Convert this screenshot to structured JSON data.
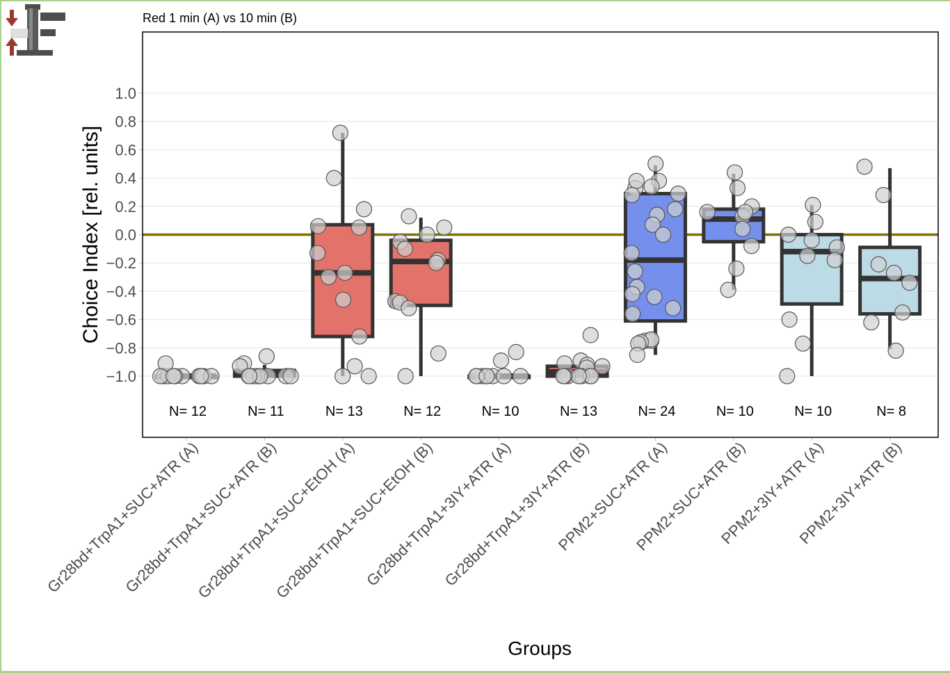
{
  "window": {
    "logo_icon": "clamp-press-icon"
  },
  "chart_data": {
    "type": "box",
    "title": "Red 1 min (A) vs 10 min (B)",
    "xlabel": "Groups",
    "ylabel": "Choice Index [rel. units]",
    "ylim": [
      -1.0,
      1.0
    ],
    "yticks": [
      1.0,
      0.8,
      0.6,
      0.4,
      0.2,
      0.0,
      -0.2,
      -0.4,
      -0.6,
      -0.8,
      -1.0
    ],
    "ytick_labels": [
      "1.0",
      "0.8",
      "0.6",
      "0.4",
      "0.2",
      "0.0",
      "−0.2",
      "−0.4",
      "−0.6",
      "−0.8",
      "−1.0"
    ],
    "reference_line": {
      "y": 0.0,
      "color": "#7f6f00"
    },
    "grid": true,
    "colors": {
      "red": "#e3736a",
      "blue": "#7490ec",
      "lightblue": "#bddbe6",
      "box_edge": "#333333",
      "point_fill": "#d0d0d0",
      "point_edge": "#555555"
    },
    "groups": [
      {
        "label": "Gr28bd+TrpA1+SUC+ATR (A)",
        "n_label": "N= 12",
        "color": "red",
        "q1": -1.0,
        "median": -1.0,
        "q3": -1.0,
        "whisker_low": -1.0,
        "whisker_high": -1.0,
        "points": [
          -1.0,
          -1.0,
          -1.0,
          -1.0,
          -1.0,
          -1.0,
          -0.91,
          -1.0,
          -1.0,
          -1.0,
          -1.0,
          -1.0
        ]
      },
      {
        "label": "Gr28bd+TrpA1+SUC+ATR (B)",
        "n_label": "N= 11",
        "color": "red",
        "q1": -1.0,
        "median": -0.98,
        "q3": -0.96,
        "whisker_low": -1.0,
        "whisker_high": -0.92,
        "points": [
          -1.0,
          -1.0,
          -1.0,
          -0.86,
          -0.91,
          -0.93,
          -1.0,
          -1.0,
          -1.0,
          -1.0,
          -1.0
        ]
      },
      {
        "label": "Gr28bd+TrpA1+SUC+EtOH (A)",
        "n_label": "N= 13",
        "color": "red",
        "q1": -0.72,
        "median": -0.27,
        "q3": 0.07,
        "whisker_low": -1.0,
        "whisker_high": 0.72,
        "points": [
          0.72,
          0.4,
          0.18,
          0.06,
          0.05,
          -0.13,
          -0.27,
          -0.3,
          -0.46,
          -0.72,
          -0.93,
          -1.0,
          -1.0
        ]
      },
      {
        "label": "Gr28bd+TrpA1+SUC+EtOH (B)",
        "n_label": "N= 12",
        "color": "red",
        "q1": -0.5,
        "median": -0.19,
        "q3": -0.04,
        "whisker_low": -1.0,
        "whisker_high": 0.12,
        "points": [
          0.13,
          0.05,
          0.0,
          -0.05,
          -0.1,
          -0.18,
          -0.2,
          -0.47,
          -0.48,
          -0.52,
          -0.84,
          -1.0
        ]
      },
      {
        "label": "Gr28bd+TrpA1+3IY+ATR (A)",
        "n_label": "N= 10",
        "color": "red",
        "q1": -1.0,
        "median": -1.0,
        "q3": -1.0,
        "whisker_low": -1.0,
        "whisker_high": -1.0,
        "points": [
          -0.83,
          -0.89,
          -1.0,
          -1.0,
          -1.0,
          -1.0,
          -1.0,
          -1.0,
          -1.0,
          -1.0
        ]
      },
      {
        "label": "Gr28bd+TrpA1+3IY+ATR (B)",
        "n_label": "N= 13",
        "color": "red",
        "q1": -1.0,
        "median": -0.97,
        "q3": -0.93,
        "whisker_low": -1.0,
        "whisker_high": -0.93,
        "points": [
          -0.71,
          -0.89,
          -0.92,
          -0.93,
          -0.94,
          -0.91,
          -1.0,
          -1.0,
          -1.0,
          -1.0,
          -1.0,
          -1.0,
          -1.0
        ]
      },
      {
        "label": "PPM2+SUC+ATR (A)",
        "n_label": "N= 24",
        "color": "blue",
        "q1": -0.61,
        "median": -0.18,
        "q3": 0.29,
        "whisker_low": -0.85,
        "whisker_high": 0.49,
        "points": [
          0.5,
          0.38,
          0.33,
          0.34,
          0.29,
          0.38,
          0.28,
          0.18,
          0.14,
          0.07,
          0.0,
          -0.13,
          -0.26,
          -0.37,
          -0.42,
          -0.44,
          -0.52,
          -0.56,
          -0.75,
          -0.75,
          -0.74,
          -0.76,
          -0.77,
          -0.85
        ]
      },
      {
        "label": "PPM2+SUC+ATR (B)",
        "n_label": "N= 10",
        "color": "blue",
        "q1": -0.05,
        "median": 0.11,
        "q3": 0.18,
        "whisker_low": -0.39,
        "whisker_high": 0.43,
        "points": [
          0.44,
          0.33,
          0.2,
          0.16,
          0.13,
          0.04,
          -0.08,
          -0.24,
          -0.39,
          0.16
        ]
      },
      {
        "label": "PPM2+3IY+ATR (A)",
        "n_label": "N= 10",
        "color": "lightblue",
        "q1": -0.49,
        "median": -0.12,
        "q3": 0.0,
        "whisker_low": -1.0,
        "whisker_high": 0.21,
        "points": [
          0.21,
          0.09,
          0.0,
          -0.04,
          -0.09,
          -0.15,
          -0.18,
          -0.6,
          -0.77,
          -1.0
        ]
      },
      {
        "label": "PPM2+3IY+ATR (B)",
        "n_label": "N= 8",
        "color": "lightblue",
        "q1": -0.56,
        "median": -0.31,
        "q3": -0.09,
        "whisker_low": -0.81,
        "whisker_high": 0.47,
        "points": [
          0.48,
          0.28,
          -0.21,
          -0.27,
          -0.34,
          -0.55,
          -0.62,
          -0.82
        ]
      }
    ]
  }
}
